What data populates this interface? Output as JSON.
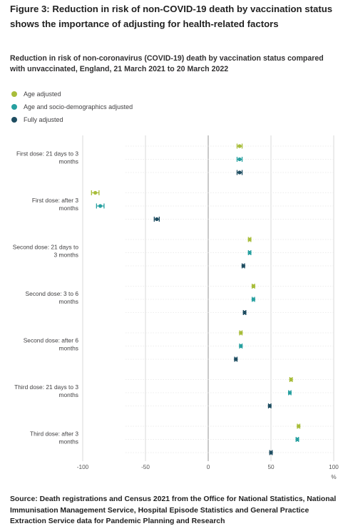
{
  "figure_title": "Figure 3: Reduction in risk of non-COVID-19 death by vaccination status shows the importance of adjusting for health-related factors",
  "source_note": "Source: Death registrations and Census 2021 from the Office for National Statistics, National Immunisation Management Service, Hospital Episode Statistics and General Practice Extraction Service data for Pandemic Planning and Research",
  "colors": {
    "age_adjusted": "#a8bd3a",
    "socio_demographic_adjusted": "#27a0a0",
    "fully_adjusted": "#1e4d61",
    "gridline": "#d9d9d9",
    "zero_line": "#bdbdbd",
    "text": "#222222"
  },
  "chart_data": {
    "type": "scatter",
    "title": "Reduction in risk of non-coronavirus (COVID-19) death by vaccination status compared with unvaccinated, England, 21 March 2021 to 20 March 2022",
    "xlabel": "%",
    "ylabel": "",
    "xlim": [
      -100,
      100
    ],
    "x_ticks": [
      "-100",
      "-50",
      "0",
      "50",
      "100"
    ],
    "grid": true,
    "legend_position": "top-left",
    "error_bars": true,
    "categories": [
      "First dose: 21 days to 3 months",
      "First dose: after 3 months",
      "Second dose: 21 days to 3 months",
      "Second dose: 3 to 6 months",
      "Second dose: after 6 months",
      "Third dose: 21 days to 3 months",
      "Third dose: after 3 months"
    ],
    "series": [
      {
        "name": "Age adjusted",
        "values": [
          25,
          -90,
          33,
          36,
          26,
          66,
          72
        ],
        "lower": [
          23,
          -93,
          32,
          35,
          25,
          65,
          71
        ],
        "upper": [
          27,
          -87,
          34,
          37,
          27,
          67,
          73
        ]
      },
      {
        "name": "Age and socio-demographics adjusted",
        "values": [
          25,
          -86,
          33,
          36,
          26,
          65,
          71
        ],
        "lower": [
          23,
          -89,
          32,
          35,
          25,
          64,
          70
        ],
        "upper": [
          27,
          -83,
          34,
          37,
          27,
          66,
          72
        ]
      },
      {
        "name": "Fully adjusted",
        "values": [
          25,
          -41,
          28,
          29,
          22,
          49,
          50
        ],
        "lower": [
          23,
          -43,
          27,
          28,
          21,
          48,
          49
        ],
        "upper": [
          27,
          -39,
          29,
          30,
          23,
          50,
          51
        ]
      }
    ]
  }
}
